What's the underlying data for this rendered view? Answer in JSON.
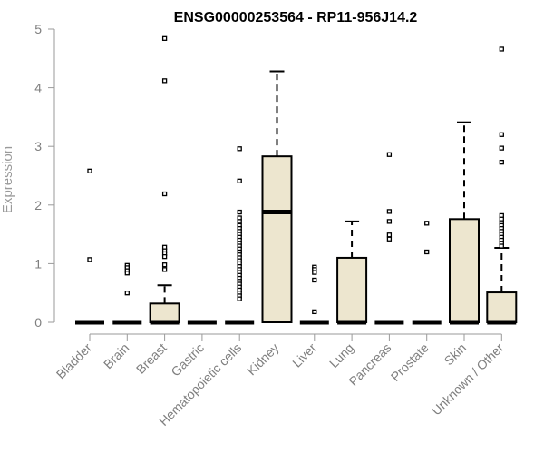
{
  "chart_data": {
    "type": "boxplot",
    "title": "ENSG00000253564 - RP11-956J14.2",
    "xlabel": "",
    "ylabel": "Expression",
    "ylim": [
      0,
      5
    ],
    "yticks": [
      0,
      1,
      2,
      3,
      4,
      5
    ],
    "grid": false,
    "box_color": "#ede6cf",
    "categories": [
      "Bladder",
      "Brain",
      "Breast",
      "Gastric",
      "Hematopoietic cells",
      "Kidney",
      "Liver",
      "Lung",
      "Pancreas",
      "Prostate",
      "Skin",
      "Unknown / Other"
    ],
    "boxes": [
      {
        "category": "Bladder",
        "min": 0,
        "q1": 0,
        "median": 0,
        "q3": 0,
        "max": 0,
        "outliers": [
          2.58,
          1.07
        ]
      },
      {
        "category": "Brain",
        "min": 0,
        "q1": 0,
        "median": 0,
        "q3": 0,
        "max": 0,
        "outliers": [
          0.97,
          0.93,
          0.88,
          0.84,
          0.5
        ]
      },
      {
        "category": "Breast",
        "min": 0,
        "q1": 0,
        "median": 0,
        "q3": 0.32,
        "max": 0.63,
        "outliers": [
          4.84,
          4.12,
          2.19,
          1.28,
          1.22,
          1.17,
          1.12,
          0.98,
          0.9
        ]
      },
      {
        "category": "Gastric",
        "min": 0,
        "q1": 0,
        "median": 0,
        "q3": 0,
        "max": 0,
        "outliers": []
      },
      {
        "category": "Hematopoietic cells",
        "min": 0,
        "q1": 0,
        "median": 0,
        "q3": 0,
        "max": 0,
        "outliers": [
          2.96,
          2.41,
          1.88,
          1.78,
          1.72,
          1.65,
          1.6,
          1.55,
          1.5,
          1.45,
          1.4,
          1.35,
          1.3,
          1.25,
          1.2,
          1.15,
          1.1,
          1.05,
          1.0,
          0.95,
          0.9,
          0.85,
          0.8,
          0.75,
          0.7,
          0.65,
          0.6,
          0.55,
          0.5,
          0.45,
          0.4
        ]
      },
      {
        "category": "Kidney",
        "min": 0,
        "q1": 0,
        "median": 1.88,
        "q3": 2.83,
        "max": 4.28,
        "outliers": []
      },
      {
        "category": "Liver",
        "min": 0,
        "q1": 0,
        "median": 0,
        "q3": 0,
        "max": 0,
        "outliers": [
          0.94,
          0.9,
          0.85,
          0.72,
          0.18
        ]
      },
      {
        "category": "Lung",
        "min": 0,
        "q1": 0,
        "median": 0,
        "q3": 1.1,
        "max": 1.72,
        "outliers": []
      },
      {
        "category": "Pancreas",
        "min": 0,
        "q1": 0,
        "median": 0,
        "q3": 0,
        "max": 0,
        "outliers": [
          2.86,
          1.89,
          1.72,
          1.49,
          1.42
        ]
      },
      {
        "category": "Prostate",
        "min": 0,
        "q1": 0,
        "median": 0,
        "q3": 0,
        "max": 0,
        "outliers": [
          1.69,
          1.2
        ]
      },
      {
        "category": "Skin",
        "min": 0,
        "q1": 0,
        "median": 0,
        "q3": 1.76,
        "max": 3.41,
        "outliers": []
      },
      {
        "category": "Unknown / Other",
        "min": 0,
        "q1": 0,
        "median": 0,
        "q3": 0.51,
        "max": 1.27,
        "outliers": [
          4.66,
          3.2,
          2.97,
          2.73,
          1.82,
          1.76,
          1.7,
          1.65,
          1.6,
          1.55,
          1.5,
          1.45,
          1.4,
          1.35,
          1.3
        ]
      }
    ]
  }
}
